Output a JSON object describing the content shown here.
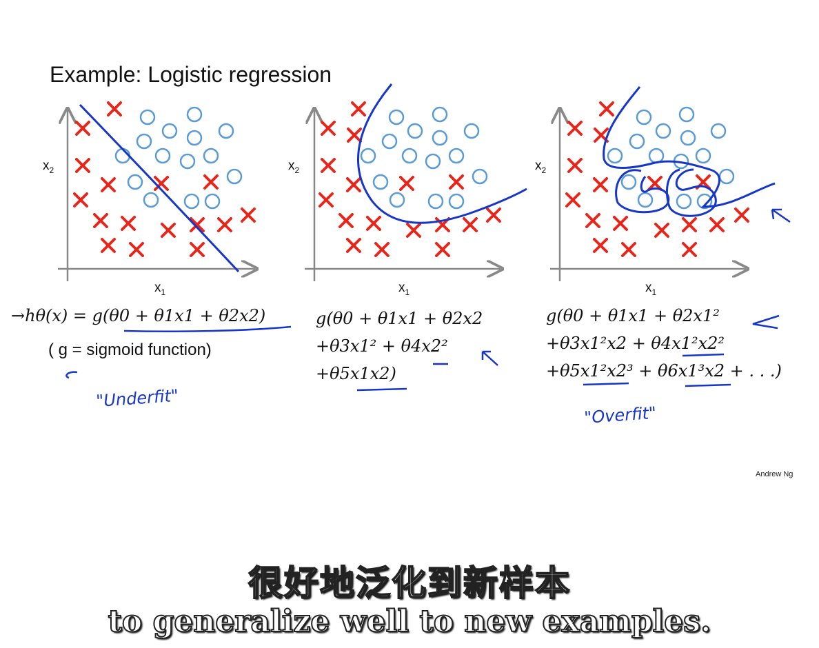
{
  "title": "Example: Logistic regression",
  "axis_labels": {
    "x": "x",
    "x_sub": "1",
    "y": "x",
    "y_sub": "2"
  },
  "equations": {
    "left_line1": "→hθ(x) = g(θ0 + θ1x1 + θ2x2)",
    "left_line2": "( g = sigmoid function)",
    "mid_line1": "g(θ0 + θ1x1 + θ2x2",
    "mid_line2": "+θ3x1² + θ4x2²",
    "mid_line3": "+θ5x1x2)",
    "right_line1": "g(θ0 + θ1x1 + θ2x1²",
    "right_line2": "+θ3x1²x2 + θ4x1²x2²",
    "right_line3": "+θ5x1²x2³ + θ6x1³x2 + . . .)"
  },
  "annotations": {
    "underfit": "\"Underfit\"",
    "overfit": "\"Overfit\""
  },
  "credit": "Andrew Ng",
  "subtitle_cn": "很好地泛化到新样本",
  "subtitle_en": "to generalize well to new examples.",
  "colors": {
    "cross": "#e8251a",
    "circle": "#5b9bd5",
    "boundary": "#1636c9"
  },
  "icons": [
    "red-cross-marker",
    "blue-circle-marker",
    "blue-arrow-icon"
  ]
}
